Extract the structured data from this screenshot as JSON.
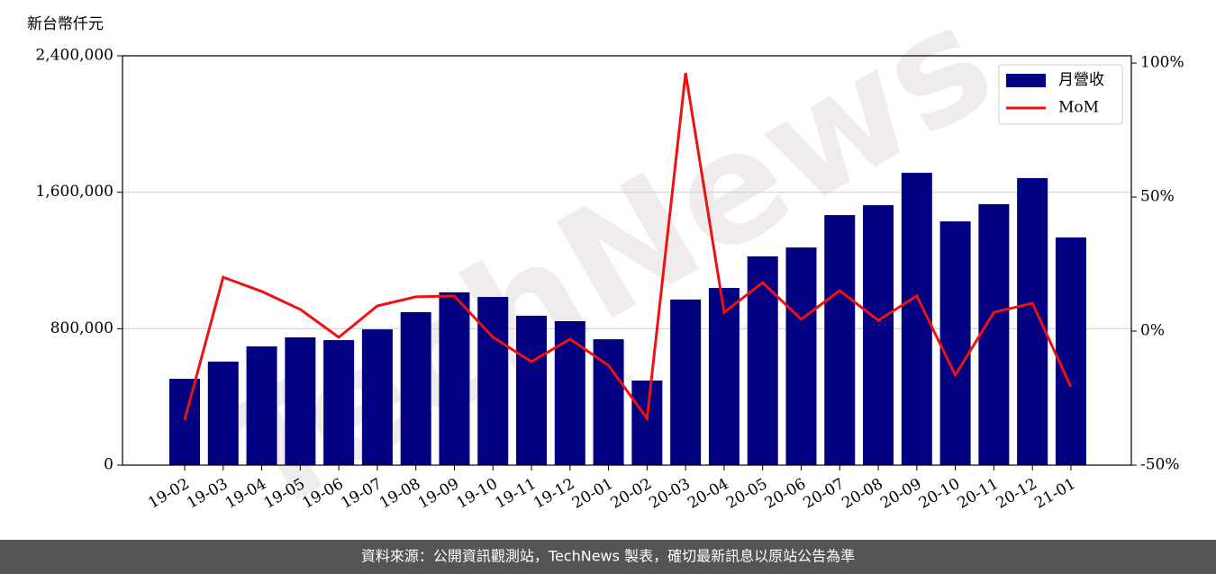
{
  "chart_data": {
    "type": "bar_line",
    "unit_label": "新台幣仟元",
    "watermark": "TechNews",
    "footer": "資料來源：公開資訊觀測站，TechNews 製表，確切最新訊息以原站公告為準",
    "categories": [
      "19-02",
      "19-03",
      "19-04",
      "19-05",
      "19-06",
      "19-07",
      "19-08",
      "19-09",
      "19-10",
      "19-11",
      "19-12",
      "20-01",
      "20-02",
      "20-03",
      "20-04",
      "20-05",
      "20-06",
      "20-07",
      "20-08",
      "20-09",
      "20-10",
      "20-11",
      "20-12",
      "21-01"
    ],
    "series": [
      {
        "name": "月營收",
        "color": "#000080",
        "type": "bar",
        "values": [
          506000,
          607000,
          696000,
          749000,
          733000,
          796000,
          897000,
          1013000,
          986000,
          876000,
          844000,
          738000,
          496000,
          971000,
          1039000,
          1224000,
          1276000,
          1466000,
          1524000,
          1714000,
          1429000,
          1530000,
          1683000,
          1335000
        ]
      },
      {
        "name": "MoM",
        "color": "#ee1111",
        "type": "line",
        "axis": "y2",
        "values": [
          -33.2,
          20.1,
          14.8,
          8.1,
          -2.3,
          9.4,
          12.8,
          13.1,
          -2.3,
          -11.4,
          -3.0,
          -12.8,
          -32.6,
          96.3,
          7.0,
          18.1,
          4.4,
          15.1,
          4.0,
          13.1,
          -16.4,
          7.0,
          10.4,
          -20.8
        ]
      }
    ],
    "ylim": [
      0,
      2400000
    ],
    "yticks": [
      {
        "value": 0,
        "label": "0"
      },
      {
        "value": 800000,
        "label": "800,000"
      },
      {
        "value": 1600000,
        "label": "1,600,000"
      },
      {
        "value": 2400000,
        "label": "2,400,000"
      }
    ],
    "y2lim": [
      -50,
      102.7
    ],
    "y2ticks": [
      {
        "value": -50,
        "label": "-50%"
      },
      {
        "value": 0,
        "label": "0%"
      },
      {
        "value": 50,
        "label": "50%"
      },
      {
        "value": 100,
        "label": "100%"
      }
    ],
    "grid": true,
    "legend": "upper right"
  }
}
